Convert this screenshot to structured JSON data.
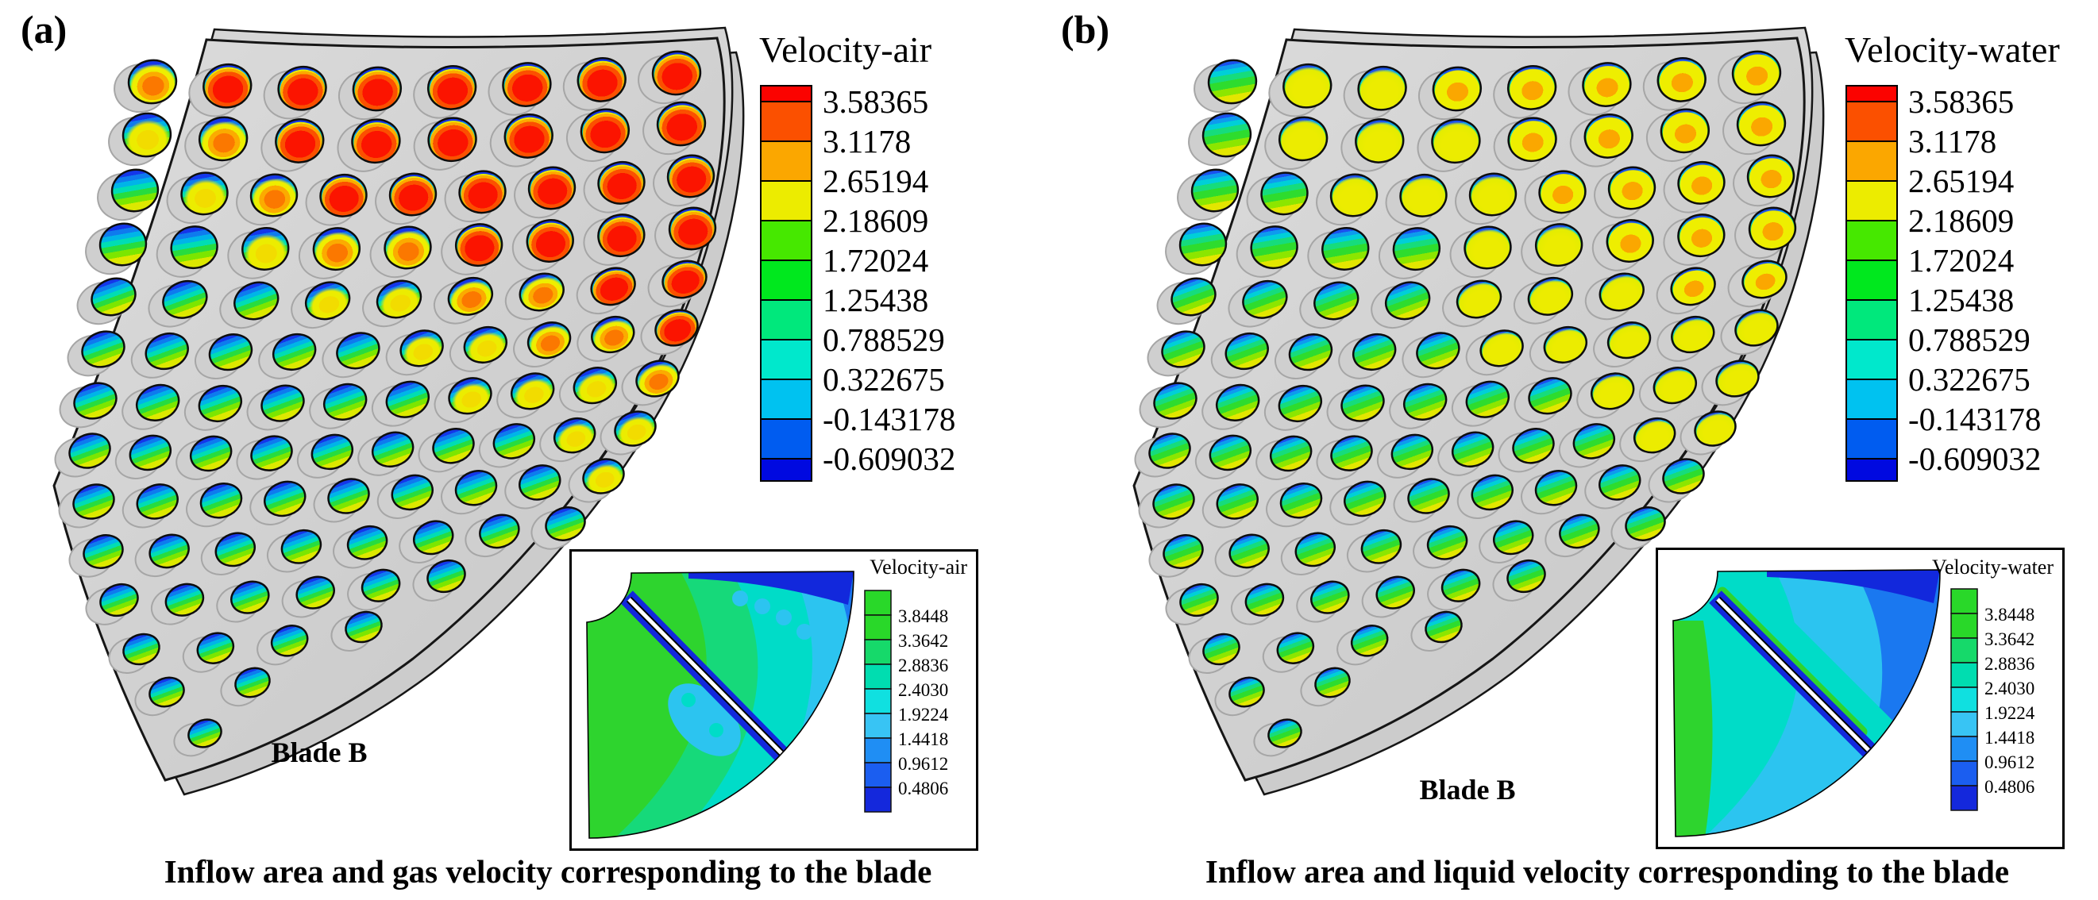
{
  "panels": [
    {
      "id": "a",
      "label": "(a)",
      "blade_label": "Blade B",
      "caption": "Inflow area and gas velocity corresponding to the blade",
      "colorbar": {
        "title": "Velocity-air",
        "labels": [
          "3.58365",
          "3.1178",
          "2.65194",
          "2.18609",
          "1.72024",
          "1.25438",
          "0.788529",
          "0.322675",
          "-0.143178",
          "-0.609032"
        ]
      },
      "inset": {
        "title": "Velocity-air",
        "labels": [
          "3.8448",
          "3.3642",
          "2.8836",
          "2.4030",
          "1.9224",
          "1.4418",
          "0.9612",
          "0.4806"
        ]
      },
      "hole_heat": [
        "23333333",
        "12333333",
        "012333333",
        "001223333",
        "000112233",
        "0000011223",
        "0000001112",
        "0000000011",
        "000000001",
        "00000000",
        "000000",
        "0000",
        "00",
        "0"
      ]
    },
    {
      "id": "b",
      "label": "(b)",
      "blade_label": "Blade B",
      "caption": "Inflow area and liquid velocity corresponding to the blade",
      "colorbar": {
        "title": "Velocity-water",
        "labels": [
          "3.58365",
          "3.1178",
          "2.65194",
          "2.18609",
          "1.72024",
          "1.25438",
          "0.788529",
          "0.322675",
          "-0.143178",
          "-0.609032"
        ]
      },
      "inset": {
        "title": "Velocity-water",
        "labels": [
          "3.8448",
          "3.3642",
          "2.8836",
          "2.4030",
          "1.9224",
          "1.4418",
          "0.9612",
          "0.4806"
        ]
      },
      "hole_heat": [
        "01122222",
        "01112222",
        "001112222",
        "000011222",
        "000011122",
        "0000011111",
        "0000000111",
        "0000000011",
        "000000000",
        "00000000",
        "000000",
        "0000",
        "00",
        "0"
      ]
    }
  ],
  "colors": {
    "colorbar": [
      "#fb0300",
      "#fb5000",
      "#fba700",
      "#ecec00",
      "#46e800",
      "#00e81e",
      "#00e87c",
      "#00e8cc",
      "#00c2f0",
      "#005cf0",
      "#0009e0"
    ],
    "inset_legend": [
      "#29d829",
      "#29d829",
      "#16d96a",
      "#00ddb0",
      "#10e0e0",
      "#38c4f4",
      "#1f8ef4",
      "#1b5ef0",
      "#1428dc"
    ],
    "map": {
      "green": "#2ed42e",
      "spring": "#16d97a",
      "turq": "#00dcc8",
      "lblue": "#2cc4f0",
      "blue": "#1a78f0",
      "dark": "#1228dc"
    },
    "plate": {
      "face1": "#dcdcdc",
      "face2": "#c6c6c6",
      "back1": "#d6d6d6",
      "back2": "#cccccc",
      "edge": "#161616",
      "dimple": "#cfcfcf",
      "dimple_edge": "#a6a6a6"
    },
    "band_a": {
      "colors": [
        "#1437ea",
        "#0e7bee",
        "#00b4e8",
        "#00ddb4",
        "#27dc3f",
        "#7ce600",
        "#dde800"
      ],
      "breaks": [
        0.13,
        0.25,
        0.37,
        0.5,
        0.64,
        0.79
      ]
    },
    "band_b": {
      "colors": [
        "#1a51ee",
        "#0e9bee",
        "#00cfd8",
        "#16dc7c",
        "#2edc2e",
        "#8ce600",
        "#e3e600"
      ],
      "breaks": [
        0.1,
        0.2,
        0.32,
        0.46,
        0.64,
        0.8
      ]
    }
  },
  "chart_data": [
    {
      "type": "heatmap",
      "panel": "(a)",
      "title": "Velocity-air",
      "annotation": "Blade B",
      "caption": "Inflow area and gas velocity corresponding to the blade",
      "legend_values": [
        3.58365,
        3.1178,
        2.65194,
        2.18609,
        1.72024,
        1.25438,
        0.788529,
        0.322675,
        -0.143178,
        -0.609032
      ],
      "inset": {
        "title": "Velocity-air",
        "legend_values": [
          3.8448,
          3.3642,
          2.8836,
          2.403,
          1.9224,
          1.4418,
          0.9612,
          0.4806
        ]
      },
      "description": "Perforated curved blade plate; each hole shows an air-velocity contour. Heat level per hole (0=low blue/green banded, 3=high red core), rows top to bottom.",
      "hole_heat_levels": [
        [
          2,
          3,
          3,
          3,
          3,
          3,
          3,
          3
        ],
        [
          1,
          2,
          3,
          3,
          3,
          3,
          3,
          3
        ],
        [
          0,
          1,
          2,
          3,
          3,
          3,
          3,
          3,
          3
        ],
        [
          0,
          0,
          1,
          2,
          2,
          3,
          3,
          3,
          3
        ],
        [
          0,
          0,
          0,
          1,
          1,
          2,
          2,
          3,
          3
        ],
        [
          0,
          0,
          0,
          0,
          0,
          1,
          1,
          2,
          2,
          3
        ],
        [
          0,
          0,
          0,
          0,
          0,
          0,
          1,
          1,
          1,
          2
        ],
        [
          0,
          0,
          0,
          0,
          0,
          0,
          0,
          0,
          1,
          1
        ],
        [
          0,
          0,
          0,
          0,
          0,
          0,
          0,
          0,
          1
        ],
        [
          0,
          0,
          0,
          0,
          0,
          0,
          0,
          0
        ],
        [
          0,
          0,
          0,
          0,
          0,
          0
        ],
        [
          0,
          0,
          0,
          0
        ],
        [
          0,
          0
        ],
        [
          0
        ]
      ]
    },
    {
      "type": "heatmap",
      "panel": "(b)",
      "title": "Velocity-water",
      "annotation": "Blade B",
      "caption": "Inflow area and liquid velocity corresponding to the blade",
      "legend_values": [
        3.58365,
        3.1178,
        2.65194,
        2.18609,
        1.72024,
        1.25438,
        0.788529,
        0.322675,
        -0.143178,
        -0.609032
      ],
      "inset": {
        "title": "Velocity-water",
        "legend_values": [
          3.8448,
          3.3642,
          2.8836,
          2.403,
          1.9224,
          1.4418,
          0.9612,
          0.4806
        ]
      },
      "description": "Same perforated blade plate; each hole shows a water-velocity contour. Heat level per hole (0=low blue/green banded, 2=orange core), rows top to bottom.",
      "hole_heat_levels": [
        [
          0,
          1,
          1,
          2,
          2,
          2,
          2,
          2
        ],
        [
          0,
          1,
          1,
          1,
          2,
          2,
          2,
          2
        ],
        [
          0,
          0,
          1,
          1,
          1,
          2,
          2,
          2,
          2
        ],
        [
          0,
          0,
          0,
          0,
          1,
          1,
          2,
          2,
          2
        ],
        [
          0,
          0,
          0,
          0,
          1,
          1,
          1,
          2,
          2
        ],
        [
          0,
          0,
          0,
          0,
          0,
          1,
          1,
          1,
          1,
          1
        ],
        [
          0,
          0,
          0,
          0,
          0,
          0,
          0,
          1,
          1,
          1
        ],
        [
          0,
          0,
          0,
          0,
          0,
          0,
          0,
          0,
          1,
          1
        ],
        [
          0,
          0,
          0,
          0,
          0,
          0,
          0,
          0,
          0
        ],
        [
          0,
          0,
          0,
          0,
          0,
          0,
          0,
          0
        ],
        [
          0,
          0,
          0,
          0,
          0,
          0
        ],
        [
          0,
          0,
          0,
          0
        ],
        [
          0,
          0
        ],
        [
          0
        ]
      ]
    }
  ]
}
